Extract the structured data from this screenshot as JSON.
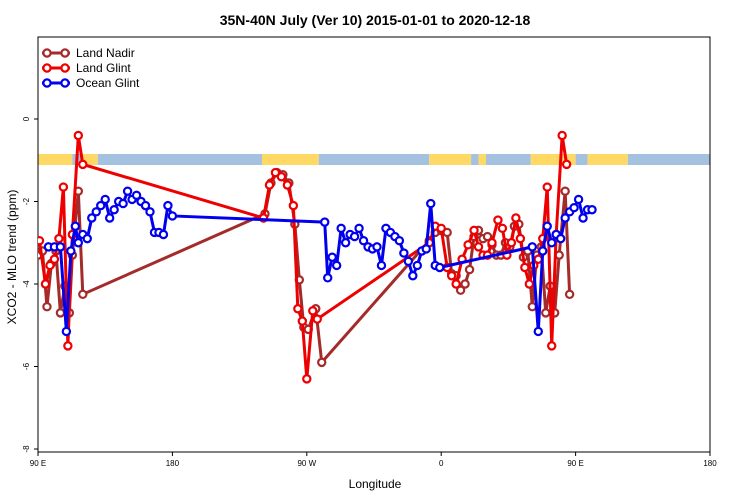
{
  "chart_data": {
    "type": "line",
    "title": "35N-40N July (Ver 10)   2015-01-01 to 2020-12-18",
    "xlabel": "Longitude",
    "ylabel": "XCO2 - MLO trend (ppm)",
    "xlim": [
      90,
      450
    ],
    "ylim": [
      -8,
      2
    ],
    "x_ticks": [
      {
        "value": 90,
        "label": "90 E"
      },
      {
        "value": 180,
        "label": "180"
      },
      {
        "value": 270,
        "label": "90 W"
      },
      {
        "value": 360,
        "label": "0"
      },
      {
        "value": 450,
        "label": "90 E"
      },
      {
        "value": 540,
        "label": "180"
      }
    ],
    "y_ticks": [
      {
        "value": 0,
        "label": "0"
      },
      {
        "value": -2,
        "label": "-2"
      },
      {
        "value": -4,
        "label": "-4"
      },
      {
        "value": -6,
        "label": "-6"
      },
      {
        "value": -8,
        "label": "-8"
      }
    ],
    "grid": false,
    "legend_position": "top-left",
    "land_mask_colors": {
      "land": "#ffd966",
      "ocean": "#a4c2e0"
    },
    "land_mask_row": [
      {
        "x0": 90,
        "x1": 113,
        "type": "land"
      },
      {
        "x0": 113,
        "x1": 120,
        "type": "ocean"
      },
      {
        "x0": 120,
        "x1": 130,
        "type": "land"
      },
      {
        "x0": 130,
        "x1": 240,
        "type": "ocean"
      },
      {
        "x0": 240,
        "x1": 278,
        "type": "land"
      },
      {
        "x0": 278,
        "x1": 352,
        "type": "ocean"
      },
      {
        "x0": 352,
        "x1": 380,
        "type": "land"
      },
      {
        "x0": 380,
        "x1": 385,
        "type": "ocean"
      },
      {
        "x0": 385,
        "x1": 390,
        "type": "land"
      },
      {
        "x0": 390,
        "x1": 420,
        "type": "ocean"
      },
      {
        "x0": 420,
        "x1": 450,
        "type": "land"
      },
      {
        "x0": 450,
        "x1": 458,
        "type": "ocean"
      },
      {
        "x0": 458,
        "x1": 485,
        "type": "land"
      },
      {
        "x0": 485,
        "x1": 540,
        "type": "ocean"
      }
    ],
    "series": [
      {
        "name": "Land Nadir",
        "color": "#a52a2a",
        "points": [
          [
            90,
            -3.3
          ],
          [
            93,
            -3.2
          ],
          [
            96,
            -4.55
          ],
          [
            99,
            -3.5
          ],
          [
            102,
            -3.2
          ],
          [
            105,
            -4.7
          ],
          [
            108,
            -4.05
          ],
          [
            111,
            -4.7
          ],
          [
            113,
            -3.3
          ],
          [
            117,
            -1.75
          ],
          [
            120,
            -4.25
          ],
          [
            242,
            -2.3
          ],
          [
            246,
            -1.55
          ],
          [
            250,
            -1.3
          ],
          [
            254,
            -1.35
          ],
          [
            258,
            -1.55
          ],
          [
            262,
            -2.55
          ],
          [
            265,
            -3.9
          ],
          [
            268,
            -5.05
          ],
          [
            271,
            -5.1
          ],
          [
            276,
            -4.6
          ],
          [
            280,
            -5.9
          ],
          [
            352,
            -2.95
          ],
          [
            356,
            -2.75
          ],
          [
            360,
            -2.7
          ],
          [
            364,
            -2.75
          ],
          [
            367,
            -3.75
          ],
          [
            370,
            -3.8
          ],
          [
            373,
            -4.15
          ],
          [
            376,
            -4.0
          ],
          [
            379,
            -3.65
          ],
          [
            382,
            -2.85
          ],
          [
            385,
            -2.7
          ],
          [
            388,
            -2.9
          ],
          [
            391,
            -2.85
          ],
          [
            394,
            -3.05
          ],
          [
            397,
            -3.3
          ],
          [
            400,
            -3.3
          ],
          [
            403,
            -3.0
          ],
          [
            406,
            -3.1
          ],
          [
            409,
            -2.6
          ],
          [
            412,
            -2.55
          ],
          [
            415,
            -3.35
          ],
          [
            418,
            -3.2
          ],
          [
            421,
            -4.55
          ],
          [
            424,
            -3.3
          ],
          [
            427,
            -3.1
          ],
          [
            430,
            -4.7
          ],
          [
            433,
            -4.05
          ],
          [
            436,
            -4.7
          ],
          [
            439,
            -3.3
          ],
          [
            443,
            -1.75
          ],
          [
            446,
            -4.25
          ]
        ]
      },
      {
        "name": "Land Glint",
        "color": "#ee0000",
        "points": [
          [
            91,
            -2.95
          ],
          [
            95,
            -4.0
          ],
          [
            98,
            -3.55
          ],
          [
            101,
            -3.4
          ],
          [
            104,
            -2.9
          ],
          [
            107,
            -1.65
          ],
          [
            110,
            -5.5
          ],
          [
            113,
            -2.8
          ],
          [
            117,
            -0.4
          ],
          [
            120,
            -1.1
          ],
          [
            241,
            -2.4
          ],
          [
            245,
            -1.6
          ],
          [
            249,
            -1.3
          ],
          [
            253,
            -1.4
          ],
          [
            257,
            -1.6
          ],
          [
            261,
            -2.1
          ],
          [
            264,
            -4.6
          ],
          [
            267,
            -4.9
          ],
          [
            270,
            -6.3
          ],
          [
            274,
            -4.65
          ],
          [
            277,
            -4.85
          ],
          [
            352,
            -3.0
          ],
          [
            356,
            -2.6
          ],
          [
            360,
            -2.65
          ],
          [
            364,
            -3.6
          ],
          [
            367,
            -3.8
          ],
          [
            370,
            -4.0
          ],
          [
            374,
            -3.4
          ],
          [
            378,
            -3.05
          ],
          [
            382,
            -2.7
          ],
          [
            385,
            -3.1
          ],
          [
            388,
            -3.3
          ],
          [
            391,
            -3.3
          ],
          [
            394,
            -3.0
          ],
          [
            398,
            -2.45
          ],
          [
            401,
            -2.65
          ],
          [
            404,
            -3.3
          ],
          [
            407,
            -3.0
          ],
          [
            410,
            -2.4
          ],
          [
            413,
            -2.9
          ],
          [
            416,
            -3.6
          ],
          [
            419,
            -4.0
          ],
          [
            422,
            -3.55
          ],
          [
            425,
            -3.4
          ],
          [
            428,
            -2.9
          ],
          [
            431,
            -1.65
          ],
          [
            434,
            -5.5
          ],
          [
            437,
            -2.8
          ],
          [
            441,
            -0.4
          ],
          [
            444,
            -1.1
          ]
        ]
      },
      {
        "name": "Ocean Glint",
        "color": "#0000ee",
        "points": [
          [
            97,
            -3.1
          ],
          [
            101,
            -3.1
          ],
          [
            105,
            -3.1
          ],
          [
            109,
            -5.15
          ],
          [
            112,
            -3.2
          ],
          [
            115,
            -2.6
          ],
          [
            117,
            -3.0
          ],
          [
            120,
            -2.8
          ],
          [
            123,
            -2.9
          ],
          [
            126,
            -2.4
          ],
          [
            129,
            -2.25
          ],
          [
            132,
            -2.1
          ],
          [
            135,
            -1.95
          ],
          [
            138,
            -2.4
          ],
          [
            141,
            -2.2
          ],
          [
            144,
            -2.0
          ],
          [
            147,
            -2.05
          ],
          [
            150,
            -1.75
          ],
          [
            153,
            -1.95
          ],
          [
            156,
            -1.85
          ],
          [
            159,
            -2.0
          ],
          [
            162,
            -2.1
          ],
          [
            165,
            -2.25
          ],
          [
            168,
            -2.75
          ],
          [
            171,
            -2.75
          ],
          [
            174,
            -2.8
          ],
          [
            177,
            -2.1
          ],
          [
            180,
            -2.35
          ],
          [
            282,
            -2.5
          ],
          [
            284,
            -3.85
          ],
          [
            287,
            -3.35
          ],
          [
            290,
            -3.55
          ],
          [
            293,
            -2.65
          ],
          [
            296,
            -3.0
          ],
          [
            299,
            -2.8
          ],
          [
            302,
            -2.85
          ],
          [
            305,
            -2.65
          ],
          [
            308,
            -2.95
          ],
          [
            311,
            -3.1
          ],
          [
            314,
            -3.15
          ],
          [
            317,
            -3.1
          ],
          [
            320,
            -3.55
          ],
          [
            323,
            -2.65
          ],
          [
            326,
            -2.75
          ],
          [
            329,
            -2.85
          ],
          [
            332,
            -2.95
          ],
          [
            335,
            -3.25
          ],
          [
            338,
            -3.45
          ],
          [
            341,
            -3.8
          ],
          [
            344,
            -3.55
          ],
          [
            347,
            -3.2
          ],
          [
            350,
            -3.15
          ],
          [
            353,
            -2.05
          ],
          [
            356,
            -3.55
          ],
          [
            359,
            -3.6
          ],
          [
            421,
            -3.1
          ],
          [
            425,
            -5.15
          ],
          [
            428,
            -3.2
          ],
          [
            431,
            -2.6
          ],
          [
            434,
            -3.0
          ],
          [
            437,
            -2.8
          ],
          [
            440,
            -2.9
          ],
          [
            443,
            -2.4
          ],
          [
            446,
            -2.25
          ],
          [
            449,
            -2.15
          ],
          [
            452,
            -1.95
          ],
          [
            455,
            -2.4
          ],
          [
            458,
            -2.2
          ],
          [
            461,
            -2.2
          ]
        ]
      }
    ]
  }
}
